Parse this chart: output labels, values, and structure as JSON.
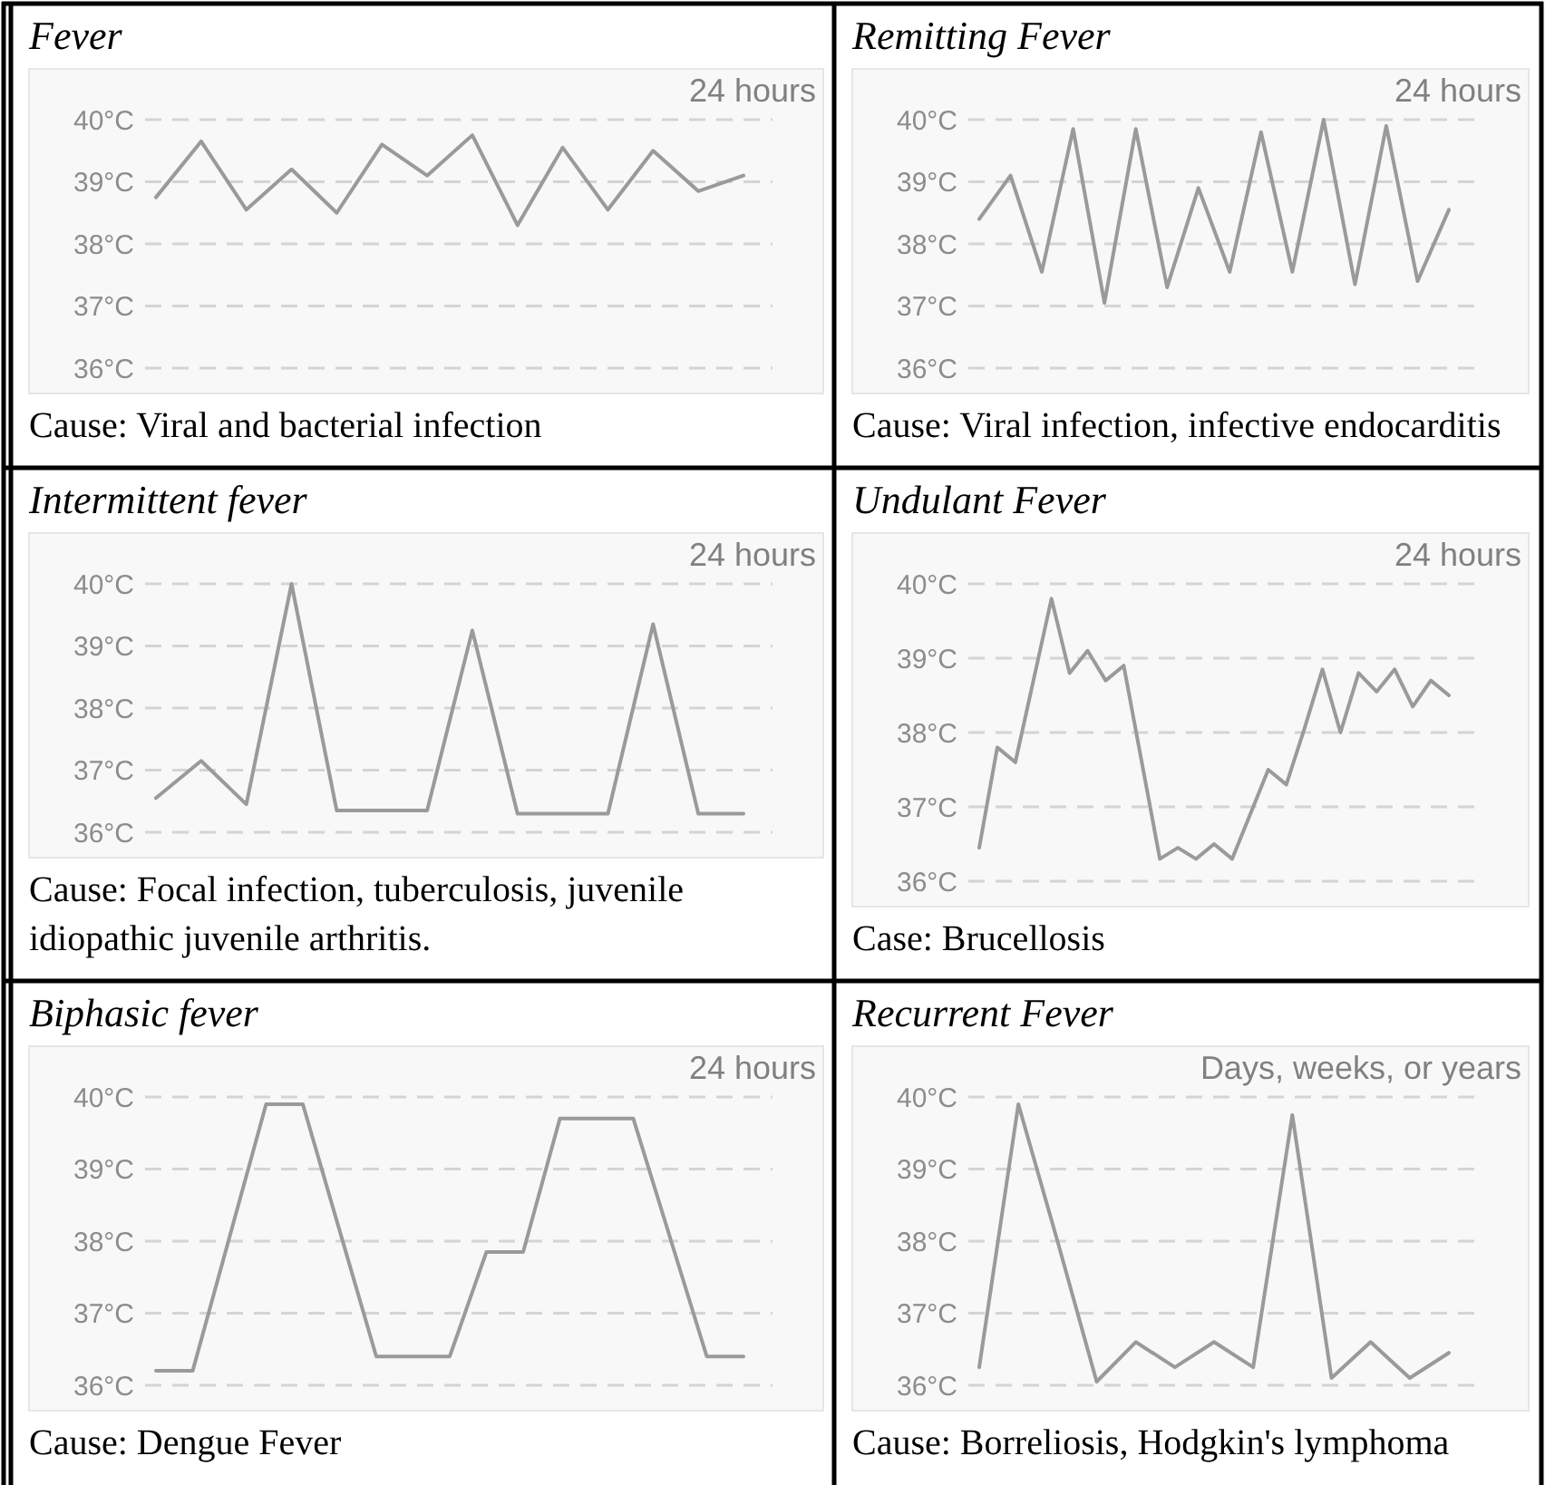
{
  "chart_data": [
    {
      "type": "line",
      "title": "Fever",
      "categories": [
        null,
        null,
        null,
        null,
        null,
        null,
        null,
        null,
        null,
        null,
        null,
        null,
        null,
        null
      ],
      "values": [
        38.75,
        39.65,
        38.55,
        39.2,
        38.5,
        39.6,
        39.1,
        39.75,
        38.3,
        39.55,
        38.55,
        39.5,
        38.85,
        39.1
      ],
      "color": "#9a9a9a",
      "ylim": [
        36,
        40
      ],
      "yticks": [
        {
          "value": 36,
          "label": "36°C"
        },
        {
          "value": 37,
          "label": "37°C"
        },
        {
          "value": 38,
          "label": "38°C"
        },
        {
          "value": 39,
          "label": "39°C"
        },
        {
          "value": 40,
          "label": "40°C"
        }
      ],
      "grid": "y",
      "tick_labels": "y",
      "annotations": [
        "24 hours",
        "Cause: Viral and bacterial infection"
      ]
    },
    {
      "type": "line",
      "title": "Remitting Fever",
      "categories": [
        null,
        null,
        null,
        null,
        null,
        null,
        null,
        null,
        null,
        null,
        null,
        null,
        null,
        null,
        null,
        null
      ],
      "values": [
        38.4,
        39.1,
        37.55,
        39.85,
        37.05,
        39.85,
        37.3,
        38.9,
        37.55,
        39.8,
        37.55,
        40.0,
        37.35,
        39.9,
        37.4,
        38.55
      ],
      "color": "#9a9a9a",
      "ylim": [
        36,
        40
      ],
      "yticks": [
        {
          "value": 36,
          "label": "36°C"
        },
        {
          "value": 37,
          "label": "37°C"
        },
        {
          "value": 38,
          "label": "38°C"
        },
        {
          "value": 39,
          "label": "39°C"
        },
        {
          "value": 40,
          "label": "40°C"
        }
      ],
      "grid": "y",
      "tick_labels": "y",
      "annotations": [
        "24 hours",
        "Cause: Viral infection, infective endocarditis"
      ]
    },
    {
      "type": "line",
      "title": "Intermittent fever",
      "categories": [
        null,
        null,
        null,
        null,
        null,
        null,
        null,
        null,
        null,
        null,
        null,
        null,
        null,
        null
      ],
      "values": [
        36.55,
        37.15,
        36.45,
        40.0,
        36.35,
        36.35,
        36.35,
        39.25,
        36.3,
        36.3,
        36.3,
        39.35,
        36.3,
        36.3
      ],
      "color": "#9a9a9a",
      "ylim": [
        36,
        40
      ],
      "yticks": [
        {
          "value": 36,
          "label": "36°C"
        },
        {
          "value": 37,
          "label": "37°C"
        },
        {
          "value": 38,
          "label": "38°C"
        },
        {
          "value": 39,
          "label": "39°C"
        },
        {
          "value": 40,
          "label": "40°C"
        }
      ],
      "grid": "y",
      "tick_labels": "y",
      "annotations": [
        "24 hours",
        "Cause: Focal infection, tuberculosis, juvenile idiopathic juvenile arthritis."
      ]
    },
    {
      "type": "line",
      "title": "Undulant Fever",
      "categories": [
        null,
        null,
        null,
        null,
        null,
        null,
        null,
        null,
        null,
        null,
        null,
        null,
        null,
        null,
        null,
        null,
        null,
        null,
        null,
        null,
        null,
        null,
        null,
        null,
        null,
        null,
        null
      ],
      "values": [
        36.45,
        37.8,
        37.6,
        38.7,
        39.8,
        38.8,
        39.1,
        38.7,
        38.9,
        37.6,
        36.3,
        36.45,
        36.3,
        36.5,
        36.3,
        36.9,
        37.5,
        37.3,
        38.05,
        38.85,
        38.0,
        38.8,
        38.55,
        38.85,
        38.35,
        38.7,
        38.5
      ],
      "color": "#9a9a9a",
      "ylim": [
        36,
        40
      ],
      "yticks": [
        {
          "value": 36,
          "label": "36°C"
        },
        {
          "value": 37,
          "label": "37°C"
        },
        {
          "value": 38,
          "label": "38°C"
        },
        {
          "value": 39,
          "label": "39°C"
        },
        {
          "value": 40,
          "label": "40°C"
        }
      ],
      "grid": "y",
      "tick_labels": "y",
      "annotations": [
        "24 hours",
        "Case: Brucellosis"
      ]
    },
    {
      "type": "line",
      "title": "Biphasic fever",
      "categories": [
        null,
        null,
        null,
        null,
        null,
        null,
        null,
        null,
        null,
        null,
        null,
        null,
        null,
        null,
        null,
        null,
        null
      ],
      "values": [
        36.2,
        36.2,
        38.05,
        39.9,
        39.9,
        38.15,
        36.4,
        36.4,
        36.4,
        37.85,
        37.85,
        39.7,
        39.7,
        39.7,
        38.05,
        36.4,
        36.4
      ],
      "color": "#9a9a9a",
      "ylim": [
        36,
        40
      ],
      "yticks": [
        {
          "value": 36,
          "label": "36°C"
        },
        {
          "value": 37,
          "label": "37°C"
        },
        {
          "value": 38,
          "label": "38°C"
        },
        {
          "value": 39,
          "label": "39°C"
        },
        {
          "value": 40,
          "label": "40°C"
        }
      ],
      "grid": "y",
      "tick_labels": "y",
      "annotations": [
        "24 hours",
        "Cause: Dengue Fever"
      ]
    },
    {
      "type": "line",
      "title": "Recurrent Fever",
      "categories": [
        null,
        null,
        null,
        null,
        null,
        null,
        null,
        null,
        null,
        null,
        null,
        null,
        null
      ],
      "values": [
        36.25,
        39.9,
        38.0,
        36.05,
        36.6,
        36.25,
        36.6,
        36.25,
        39.75,
        36.1,
        36.6,
        36.1,
        36.45
      ],
      "color": "#9a9a9a",
      "ylim": [
        36,
        40
      ],
      "yticks": [
        {
          "value": 36,
          "label": "36°C"
        },
        {
          "value": 37,
          "label": "37°C"
        },
        {
          "value": 38,
          "label": "38°C"
        },
        {
          "value": 39,
          "label": "39°C"
        },
        {
          "value": 40,
          "label": "40°C"
        }
      ],
      "grid": "y",
      "tick_labels": "y",
      "annotations": [
        "Days, weeks, or years",
        "Cause: Borreliosis, Hodgkin's lymphoma"
      ]
    }
  ]
}
